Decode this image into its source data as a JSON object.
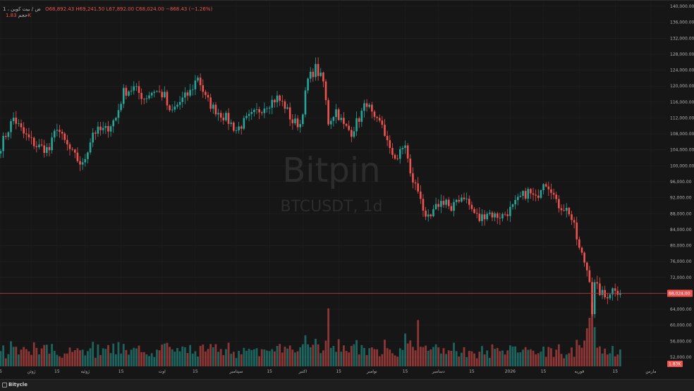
{
  "legend": {
    "symbol": "1 ، ض / بیت کوین",
    "ohlc": "O68,892.43 H69,241.50 L67,892.00 C68,024.00 −868.43 (−1.26%)",
    "volume_label": "حجم",
    "volume_value": "1.83K"
  },
  "watermark": {
    "brand": "Bitpin",
    "pair": "BTCUSDT, 1d"
  },
  "footer": {
    "label": "Bitycle"
  },
  "colors": {
    "up": "#26a69a",
    "down": "#ef5350",
    "background": "#161616",
    "grid": "#222222",
    "last_price_line": "#b33a3a",
    "price_badge": "#ef5350"
  },
  "chart_data": {
    "type": "candlestick",
    "y_axis": {
      "min": 52000,
      "max": 140000,
      "step": 4000,
      "labels": [
        "140,000.00",
        "136,000.00",
        "132,000.00",
        "128,000.00",
        "124,000.00",
        "120,000.00",
        "116,000.00",
        "112,000.00",
        "108,000.00",
        "104,000.00",
        "100,000.00",
        "96,000.00",
        "92,000.00",
        "88,000.00",
        "84,000.00",
        "80,000.00",
        "76,000.00",
        "72,000.00",
        "68,000.00",
        "64,000.00",
        "60,000.00",
        "56,000.00",
        "52,000.00"
      ]
    },
    "last_price": 68024.0,
    "last_price_label": "68,024.00",
    "last_volume_label": "1.83K",
    "x_axis": {
      "labels": [
        {
          "text": "5",
          "day": 0
        },
        {
          "text": "ژوئن",
          "day": 12
        },
        {
          "text": "15",
          "day": 22
        },
        {
          "text": "ژوئیه",
          "day": 33
        },
        {
          "text": "15",
          "day": 47
        },
        {
          "text": "اوت",
          "day": 63
        },
        {
          "text": "15",
          "day": 76
        },
        {
          "text": "سپتامبر",
          "day": 92
        },
        {
          "text": "15",
          "day": 105
        },
        {
          "text": "اکتبر",
          "day": 118
        },
        {
          "text": "15",
          "day": 132
        },
        {
          "text": "نوامبر",
          "day": 145
        },
        {
          "text": "15",
          "day": 158
        },
        {
          "text": "دسامبر",
          "day": 171
        },
        {
          "text": "15",
          "day": 184
        },
        {
          "text": "2026",
          "day": 199
        },
        {
          "text": "15",
          "day": 212
        },
        {
          "text": "فوریه",
          "day": 226
        },
        {
          "text": "15",
          "day": 240
        },
        {
          "text": "مارس",
          "day": 254
        }
      ]
    },
    "anchors": [
      [
        0,
        105000
      ],
      [
        5,
        112000
      ],
      [
        9,
        108000
      ],
      [
        14,
        105000
      ],
      [
        19,
        104000
      ],
      [
        22,
        110000
      ],
      [
        24,
        107000
      ],
      [
        28,
        103000
      ],
      [
        32,
        100000
      ],
      [
        36,
        108500
      ],
      [
        41,
        109000
      ],
      [
        45,
        112000
      ],
      [
        48,
        118500
      ],
      [
        52,
        119500
      ],
      [
        56,
        117000
      ],
      [
        60,
        119000
      ],
      [
        64,
        117500
      ],
      [
        66,
        113000
      ],
      [
        70,
        116000
      ],
      [
        74,
        118500
      ],
      [
        77,
        122500
      ],
      [
        80,
        117000
      ],
      [
        83,
        114500
      ],
      [
        86,
        113000
      ],
      [
        88,
        112000
      ],
      [
        92,
        109000
      ],
      [
        96,
        111500
      ],
      [
        100,
        113500
      ],
      [
        104,
        115500
      ],
      [
        108,
        117000
      ],
      [
        111,
        115000
      ],
      [
        114,
        111000
      ],
      [
        117,
        110500
      ],
      [
        120,
        121500
      ],
      [
        123,
        124500
      ],
      [
        126,
        121000
      ],
      [
        128,
        111000
      ],
      [
        131,
        114000
      ],
      [
        134,
        110000
      ],
      [
        137,
        108500
      ],
      [
        140,
        112000
      ],
      [
        143,
        116000
      ],
      [
        146,
        111000
      ],
      [
        149,
        110500
      ],
      [
        152,
        103500
      ],
      [
        155,
        102000
      ],
      [
        158,
        105500
      ],
      [
        160,
        97500
      ],
      [
        164,
        92500
      ],
      [
        166,
        86000
      ],
      [
        168,
        87000
      ],
      [
        171,
        90500
      ],
      [
        174,
        91500
      ],
      [
        176,
        88000
      ],
      [
        178,
        91500
      ],
      [
        181,
        92500
      ],
      [
        184,
        89000
      ],
      [
        187,
        86500
      ],
      [
        190,
        88500
      ],
      [
        193,
        87500
      ],
      [
        196,
        87500
      ],
      [
        200,
        89500
      ],
      [
        203,
        92000
      ],
      [
        206,
        93500
      ],
      [
        209,
        91500
      ],
      [
        212,
        96500
      ],
      [
        215,
        94500
      ],
      [
        217,
        90500
      ],
      [
        220,
        89500
      ],
      [
        222,
        88500
      ],
      [
        224,
        84500
      ],
      [
        226,
        79000
      ],
      [
        228,
        76000
      ],
      [
        230,
        72000
      ],
      [
        231,
        63500
      ],
      [
        232,
        70000
      ],
      [
        234,
        68500
      ],
      [
        236,
        67000
      ],
      [
        238,
        68500
      ],
      [
        240,
        69500
      ],
      [
        242,
        68024
      ]
    ]
  }
}
